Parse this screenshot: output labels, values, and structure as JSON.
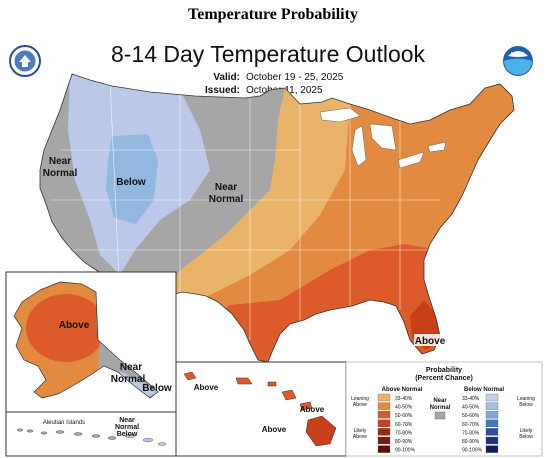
{
  "page": {
    "heading": "Temperature Probability"
  },
  "map": {
    "title": "8-14 Day Temperature Outlook",
    "valid_label": "Valid:",
    "valid_value": "October 19 - 25, 2025",
    "issued_label": "Issued:",
    "issued_value": "October 11, 2025",
    "logos": [
      "doc-seal",
      "noaa-logo"
    ],
    "noaa_logo_text": "NOAA",
    "region_labels": {
      "west_near_normal": [
        "Near",
        "Normal"
      ],
      "rockies_below": "Below",
      "plains_near_normal": [
        "Near",
        "Normal"
      ],
      "florida_above": "Above",
      "alaska_above": "Above",
      "alaska_near_normal": [
        "Near",
        "Normal"
      ],
      "alaska_below": "Below",
      "aleutian_title": "Aleutian Islands",
      "aleutian_near_normal": [
        "Near",
        "Normal",
        "Below"
      ],
      "hawaii_above_1": "Above",
      "hawaii_above_2": "Above",
      "hawaii_above_3": "Above"
    },
    "colors": {
      "near_normal": "#a6a6a6",
      "above_33_40": "#e9b46a",
      "above_40_50": "#e28a40",
      "above_50_60": "#dd5b2a",
      "above_60_70": "#c8401a",
      "below_33_40": "#bcc8e8",
      "below_40_50": "#92b8e0"
    }
  },
  "legend": {
    "title": "Probability",
    "subtitle": "(Percent Chance)",
    "above_header": "Above Normal",
    "below_header": "Below Normal",
    "near_label": [
      "Near",
      "Normal"
    ],
    "leaning_above": [
      "Leaning",
      "Above"
    ],
    "likely_above": [
      "Likely",
      "Above"
    ],
    "leaning_below": [
      "Leaning",
      "Below"
    ],
    "likely_below": [
      "Likely",
      "Below"
    ],
    "bins": [
      "33-40%",
      "40-50%",
      "50-60%",
      "60-70%",
      "70-80%",
      "80-90%",
      "90-100%"
    ],
    "above_colors": [
      "#e9b46a",
      "#e28a40",
      "#dd5b2a",
      "#c8401a",
      "#9c2a0e",
      "#7a1a08",
      "#5a0e04"
    ],
    "below_colors": [
      "#c4d0ea",
      "#9fc0e4",
      "#7ea8d8",
      "#3f78c0",
      "#2a4ea0",
      "#1e2e80",
      "#141a58"
    ],
    "near_color": "#a6a6a6"
  }
}
